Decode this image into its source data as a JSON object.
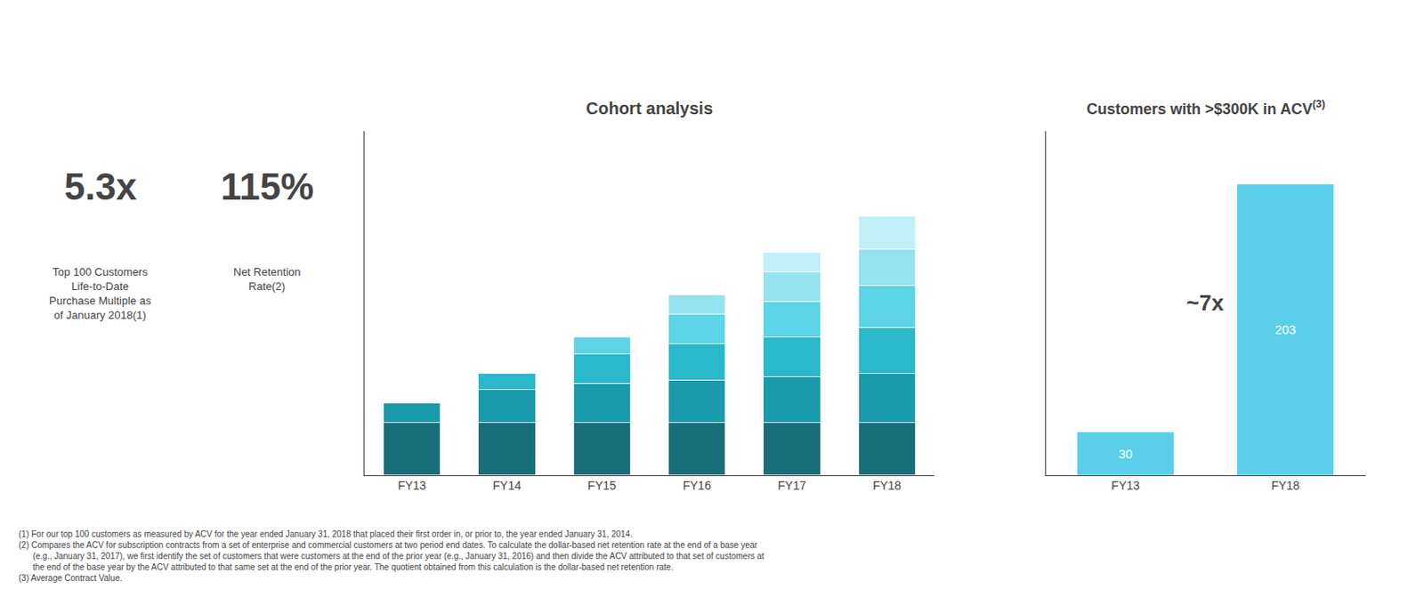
{
  "chart_data": [
    {
      "type": "bar",
      "title": "Cohort analysis",
      "stacked": true,
      "categories": [
        "FY13",
        "FY14",
        "FY15",
        "FY16",
        "FY17",
        "FY18"
      ],
      "series": [
        {
          "color": "#1a6e7a",
          "values": [
            1.6,
            1.6,
            1.6,
            1.6,
            1.6,
            1.6
          ]
        },
        {
          "color": "#1a9aaa",
          "values": [
            0.6,
            1.0,
            1.2,
            1.3,
            1.4,
            1.5
          ]
        },
        {
          "color": "#29b8cc",
          "values": [
            0,
            0.5,
            0.9,
            1.1,
            1.2,
            1.4
          ]
        },
        {
          "color": "#5dd4e8",
          "values": [
            0,
            0,
            0.5,
            0.9,
            1.1,
            1.3
          ]
        },
        {
          "color": "#96e3f0",
          "values": [
            0,
            0,
            0,
            0.6,
            0.9,
            1.1
          ]
        },
        {
          "color": "#c2f0f8",
          "values": [
            0,
            0,
            0,
            0,
            0.6,
            1.0
          ]
        }
      ],
      "ylim": [
        0,
        10.5
      ],
      "yticks": [],
      "grid": false,
      "tick_labels": "x",
      "annotations": [
        "5.3x",
        "Top 100 Customers\nLife-to-Date\nPurchase Multiple as\nof January 2018(1)",
        "115%",
        "Net Retention\nRate(2)",
        "(1) For our top 100 customers as measured by ACV for the year ended January 31, 2018 that placed their first order in, or prior to, the year ended January 31, 2014.",
        "(2) Compares the ACV for subscription contracts from a set of enterprise and commercial customers at two period end dates. To calculate the dollar-based net retention rate at the end of a base year",
        "      (e.g., January 31, 2017), we first identify the set of customers that were customers at the end of the prior year (e.g., January 31, 2016) and then divide the ACV attributed to that set of customers at",
        "      the end of the base year by the ACV attributed to that same set at the end of the prior year. The quotient obtained from this calculation is the dollar-based net retention rate.",
        "(3) Average Contract Value."
      ]
    },
    {
      "type": "bar",
      "title": "Customers with >$300K in ACV",
      "categories": [
        "FY13",
        "FY18"
      ],
      "values": [
        30,
        203
      ],
      "color": "#5bcfea",
      "data_labels": true,
      "ylim": [
        0,
        240
      ],
      "yticks": [],
      "grid": false,
      "tick_labels": "x",
      "annotations": [
        "(3)",
        "~7x"
      ]
    }
  ]
}
